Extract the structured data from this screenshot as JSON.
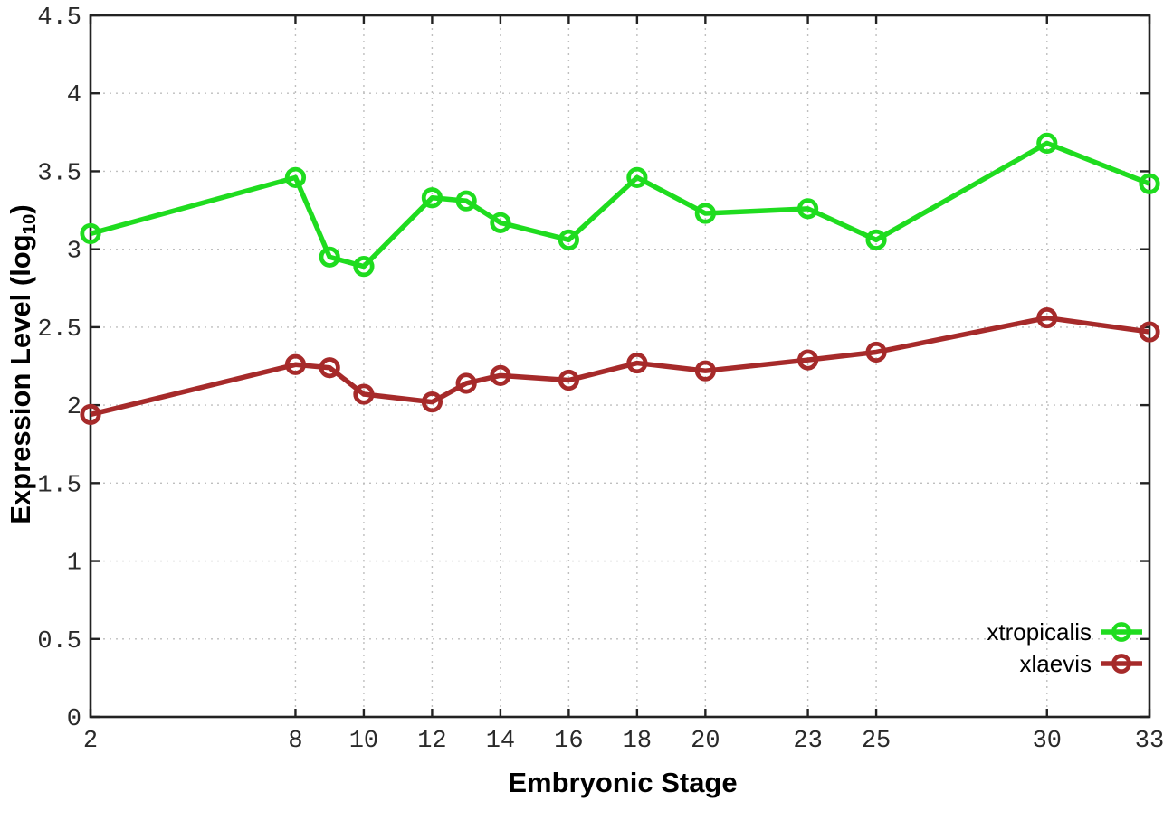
{
  "figure": {
    "xlabel": "Embryonic Stage",
    "ylabel_main": "Expression Level (log",
    "ylabel_sub": "10",
    "ylabel_close": ")"
  },
  "chart_data": {
    "type": "line",
    "title": "",
    "xlabel": "Embryonic Stage",
    "ylabel": "Expression Level (log10)",
    "x": [
      2,
      8,
      9,
      10,
      12,
      13,
      14,
      16,
      18,
      20,
      23,
      25,
      30,
      33
    ],
    "series": [
      {
        "name": "xtropicalis",
        "color": "#1fdc1f",
        "values": [
          3.1,
          3.46,
          2.95,
          2.89,
          3.33,
          3.31,
          3.17,
          3.06,
          3.46,
          3.23,
          3.26,
          3.06,
          3.68,
          3.42
        ]
      },
      {
        "name": "xlaevis",
        "color": "#a62a2a",
        "values": [
          1.94,
          2.26,
          2.24,
          2.07,
          2.02,
          2.14,
          2.19,
          2.16,
          2.27,
          2.22,
          2.29,
          2.34,
          2.56,
          2.47
        ]
      }
    ],
    "xlim": [
      2,
      33
    ],
    "ylim": [
      0,
      4.5
    ],
    "xticks": [
      2,
      8,
      10,
      12,
      14,
      16,
      18,
      20,
      23,
      25,
      30,
      33
    ],
    "yticks": [
      0,
      0.5,
      1,
      1.5,
      2,
      2.5,
      3,
      3.5,
      4,
      4.5
    ],
    "grid": true,
    "legend_position": "bottom-right-inside",
    "marker": "open-circle",
    "colors": {
      "axis": "#222222",
      "grid": "#bfbfbf",
      "tick_label": "#2a2a2a",
      "background": "#ffffff"
    }
  }
}
